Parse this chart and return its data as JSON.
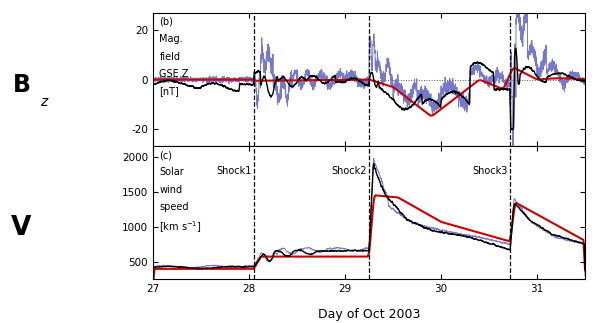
{
  "title": "Day of Oct 2003",
  "xmin": 27.0,
  "xmax": 31.5,
  "xticks": [
    27,
    28,
    29,
    30,
    31
  ],
  "shock_lines": [
    28.05,
    29.25,
    30.72
  ],
  "shock_labels": [
    "Shock1",
    "Shock2",
    "Shock3"
  ],
  "panel_b_ylim": [
    -27,
    27
  ],
  "panel_b_yticks": [
    -20,
    0,
    20
  ],
  "panel_v_ylim": [
    250,
    2150
  ],
  "panel_v_yticks": [
    500,
    1000,
    1500,
    2000
  ],
  "background_color": "#ffffff",
  "blue_color": "#7777cc",
  "red_color": "#cc0000",
  "black_color": "#000000"
}
